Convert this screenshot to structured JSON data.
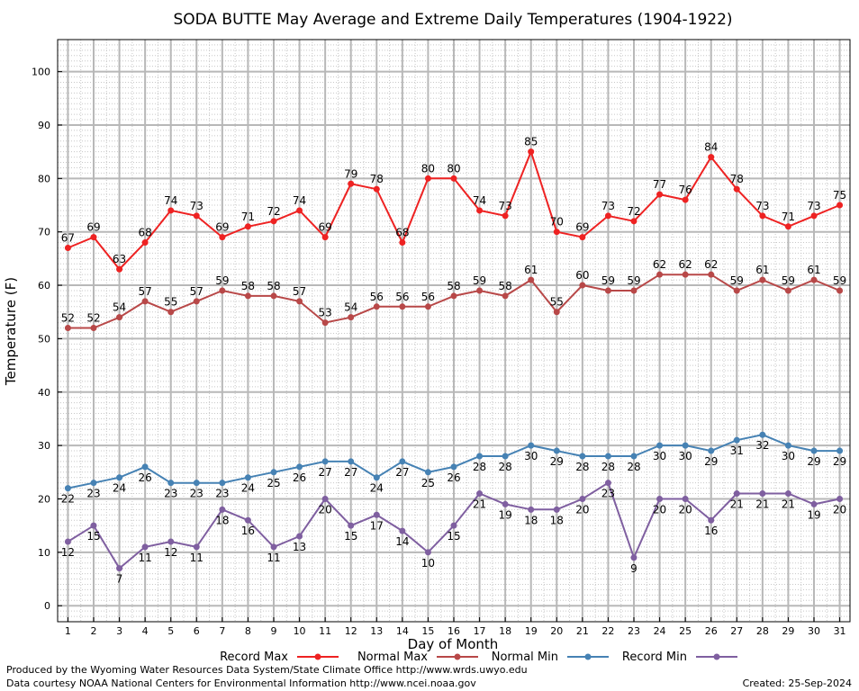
{
  "chart_data": {
    "type": "line",
    "title": "SODA BUTTE May Average and Extreme Daily Temperatures (1904-1922)",
    "xlabel": "Day of Month",
    "ylabel": "Temperature (F)",
    "x": [
      1,
      2,
      3,
      4,
      5,
      6,
      7,
      8,
      9,
      10,
      11,
      12,
      13,
      14,
      15,
      16,
      17,
      18,
      19,
      20,
      21,
      22,
      23,
      24,
      25,
      26,
      27,
      28,
      29,
      30,
      31
    ],
    "xlim": [
      0.6,
      31.4
    ],
    "ylim": [
      -3,
      106
    ],
    "yticks": [
      0,
      10,
      20,
      30,
      40,
      50,
      60,
      70,
      80,
      90,
      100
    ],
    "grid": true,
    "legend_position": "bottom",
    "series": [
      {
        "name": "Record Max",
        "color": "#ee2222",
        "label_pos": "above",
        "values": [
          67,
          69,
          63,
          68,
          74,
          73,
          69,
          71,
          72,
          74,
          69,
          79,
          78,
          68,
          80,
          80,
          74,
          73,
          85,
          70,
          69,
          73,
          72,
          77,
          76,
          84,
          78,
          73,
          71,
          73,
          75
        ]
      },
      {
        "name": "Normal Max",
        "color": "#b84848",
        "label_pos": "above",
        "values": [
          52,
          52,
          54,
          57,
          55,
          57,
          59,
          58,
          58,
          57,
          53,
          54,
          56,
          56,
          56,
          58,
          59,
          58,
          61,
          55,
          60,
          59,
          59,
          62,
          62,
          62,
          59,
          61,
          59,
          61,
          59
        ]
      },
      {
        "name": "Normal Min",
        "color": "#4682b4",
        "label_pos": "below",
        "values": [
          22,
          23,
          24,
          26,
          23,
          23,
          23,
          24,
          25,
          26,
          27,
          27,
          24,
          27,
          25,
          26,
          28,
          28,
          30,
          29,
          28,
          28,
          28,
          30,
          30,
          29,
          31,
          32,
          30,
          29,
          29
        ]
      },
      {
        "name": "Record Min",
        "color": "#7f5fa0",
        "label_pos": "below",
        "values": [
          12,
          15,
          7,
          11,
          12,
          11,
          18,
          16,
          11,
          13,
          20,
          15,
          17,
          14,
          10,
          15,
          21,
          19,
          18,
          18,
          20,
          23,
          9,
          20,
          20,
          16,
          21,
          21,
          21,
          19,
          20
        ]
      }
    ]
  },
  "footer": {
    "produced_by": "Produced by the Wyoming Water Resources Data System/State Climate Office http://www.wrds.uwyo.edu",
    "data_courtesy": "Data courtesy NOAA National Centers for Environmental Information http://www.ncei.noaa.gov",
    "created": "Created: 25-Sep-2024"
  }
}
